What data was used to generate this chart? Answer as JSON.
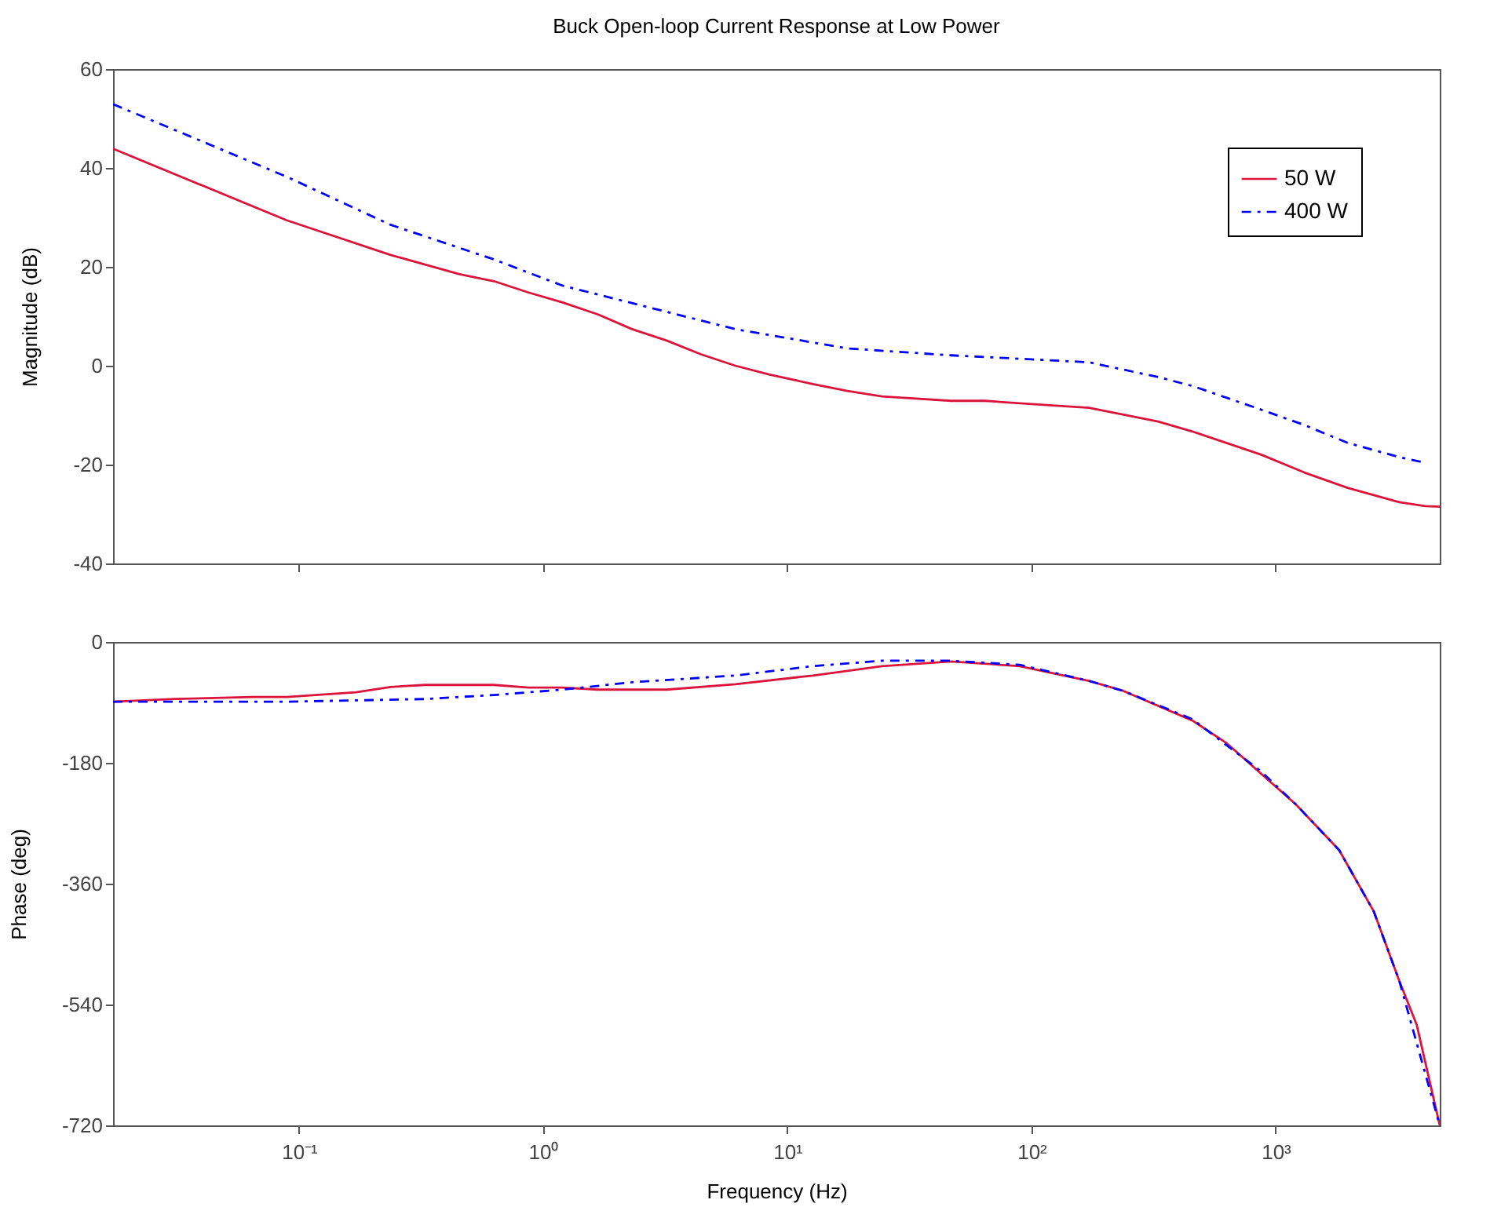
{
  "chart_data": [
    {
      "type": "line",
      "title": "Buck Open-loop Current Response at Low Power",
      "ylabel": "Magnitude (dB)",
      "log": "x",
      "legend": "top right",
      "grid": false,
      "tick_labels": "y",
      "xlim": [
        0.0173,
        4700
      ],
      "xticks": [
        {
          "value": 0.1,
          "label": null
        },
        {
          "value": 1,
          "label": null
        },
        {
          "value": 10,
          "label": null
        },
        {
          "value": 100,
          "label": null
        },
        {
          "value": 1000,
          "label": null
        }
      ],
      "ylim": [
        -40,
        60
      ],
      "yticks": [
        -40,
        -20,
        0,
        20,
        40,
        60
      ],
      "series": [
        {
          "name": "50 W",
          "color": "#dc143c",
          "line_style": "solid",
          "x": [
            0.0173,
            0.0891,
            0.237,
            0.454,
            0.628,
            0.871,
            1.2,
            1.67,
            2.31,
            3.2,
            4.43,
            6.12,
            8.47,
            12.7,
            17.6,
            24.4,
            46.8,
            64.7,
            89.5,
            172,
            330,
            456,
            873,
            1310,
            1970,
            3210,
            4090,
            4700
          ],
          "values": [
            43.9,
            29.4,
            22.4,
            18.5,
            17.1,
            14.8,
            12.8,
            10.4,
            7.4,
            5.1,
            2.3,
            0.0,
            -1.8,
            -3.7,
            -5.1,
            -6.2,
            -7.1,
            -7.1,
            -7.6,
            -8.5,
            -11.3,
            -13.3,
            -18.0,
            -21.6,
            -24.7,
            -27.6,
            -28.4,
            -28.5
          ]
        },
        {
          "name": "400 W",
          "color": "#0000ff",
          "line_style": "dashed",
          "x": [
            0.0173,
            0.0891,
            0.237,
            0.628,
            1.2,
            3.2,
            6.12,
            17.6,
            46.8,
            172,
            330,
            456,
            873,
            1310,
            1970,
            3210,
            4090
          ],
          "values": [
            52.9,
            38.2,
            28.5,
            21.5,
            16.2,
            10.9,
            7.4,
            3.5,
            2.1,
            0.7,
            -2.3,
            -4.1,
            -8.9,
            -12.0,
            -15.6,
            -18.5,
            -19.6
          ]
        }
      ]
    },
    {
      "type": "line",
      "xlabel": "Frequency (Hz)",
      "ylabel": "Phase (deg)",
      "log": "x",
      "grid": false,
      "xlim": [
        0.0173,
        4700
      ],
      "xticks": [
        {
          "value": 0.1,
          "label": "10⁻¹"
        },
        {
          "value": 1,
          "label": "10⁰"
        },
        {
          "value": 10,
          "label": "10¹"
        },
        {
          "value": 100,
          "label": "10²"
        },
        {
          "value": 1000,
          "label": "10³"
        }
      ],
      "ylim": [
        -720,
        0
      ],
      "yticks": [
        -720,
        -540,
        -360,
        -180,
        0
      ],
      "series": [
        {
          "color": "#dc143c",
          "line_style": "solid",
          "x": [
            0.0173,
            0.031,
            0.0644,
            0.0891,
            0.171,
            0.237,
            0.328,
            0.628,
            0.871,
            1.2,
            1.67,
            3.2,
            6.12,
            12.7,
            24.4,
            46.8,
            89.5,
            172,
            238,
            456,
            631,
            1210,
            1820,
            2520,
            3210,
            3780,
            4700
          ],
          "values": [
            -89,
            -85,
            -82,
            -82,
            -75,
            -67,
            -64,
            -64,
            -68,
            -68,
            -71,
            -71,
            -63,
            -50,
            -36,
            -29,
            -36,
            -58,
            -73,
            -117,
            -151,
            -242,
            -310,
            -401,
            -505,
            -570,
            -720
          ]
        },
        {
          "color": "#0000ff",
          "line_style": "dashed",
          "x": [
            0.0173,
            0.0891,
            0.328,
            0.628,
            1.2,
            2.31,
            6.12,
            12.7,
            24.4,
            46.8,
            89.5,
            172,
            238,
            456,
            873,
            1210,
            1820,
            2520,
            3210,
            4700
          ],
          "values": [
            -89,
            -89,
            -85,
            -79,
            -71,
            -60,
            -50,
            -36,
            -28,
            -28,
            -34,
            -58,
            -73,
            -115,
            -193,
            -242,
            -310,
            -401,
            -505,
            -720
          ]
        }
      ]
    }
  ]
}
